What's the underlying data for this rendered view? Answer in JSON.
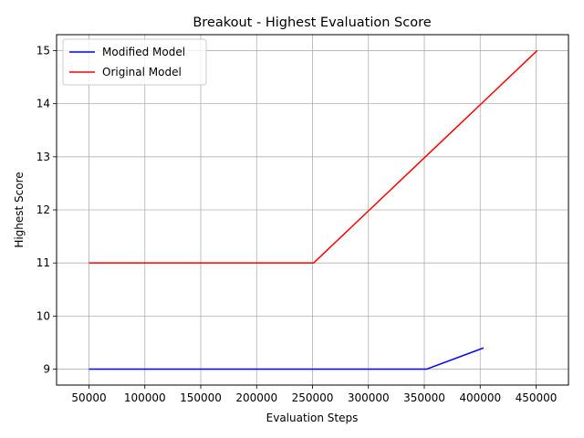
{
  "chart_data": {
    "type": "line",
    "title": "Breakout - Highest Evaluation Score",
    "xlabel": "Evaluation Steps",
    "ylabel": "Highest Score",
    "xlim": [
      21000,
      479000
    ],
    "ylim": [
      8.7,
      15.3
    ],
    "xticks": [
      50000,
      100000,
      150000,
      200000,
      250000,
      300000,
      350000,
      400000,
      450000
    ],
    "yticks": [
      9,
      10,
      11,
      12,
      13,
      14,
      15
    ],
    "grid": true,
    "legend_position": "top-left",
    "series": [
      {
        "name": "Modified Model",
        "color": "#0000ff",
        "x": [
          50000,
          100000,
          150000,
          200000,
          250000,
          300000,
          350000,
          352000,
          403000
        ],
        "y": [
          9,
          9,
          9,
          9,
          9,
          9,
          9,
          9,
          9.4
        ]
      },
      {
        "name": "Original Model",
        "color": "#ff0000",
        "x": [
          50000,
          100000,
          150000,
          200000,
          250000,
          251000,
          301000,
          351000,
          401000,
          451000
        ],
        "y": [
          11,
          11,
          11,
          11,
          11,
          11,
          12,
          13,
          14,
          15
        ]
      }
    ]
  }
}
